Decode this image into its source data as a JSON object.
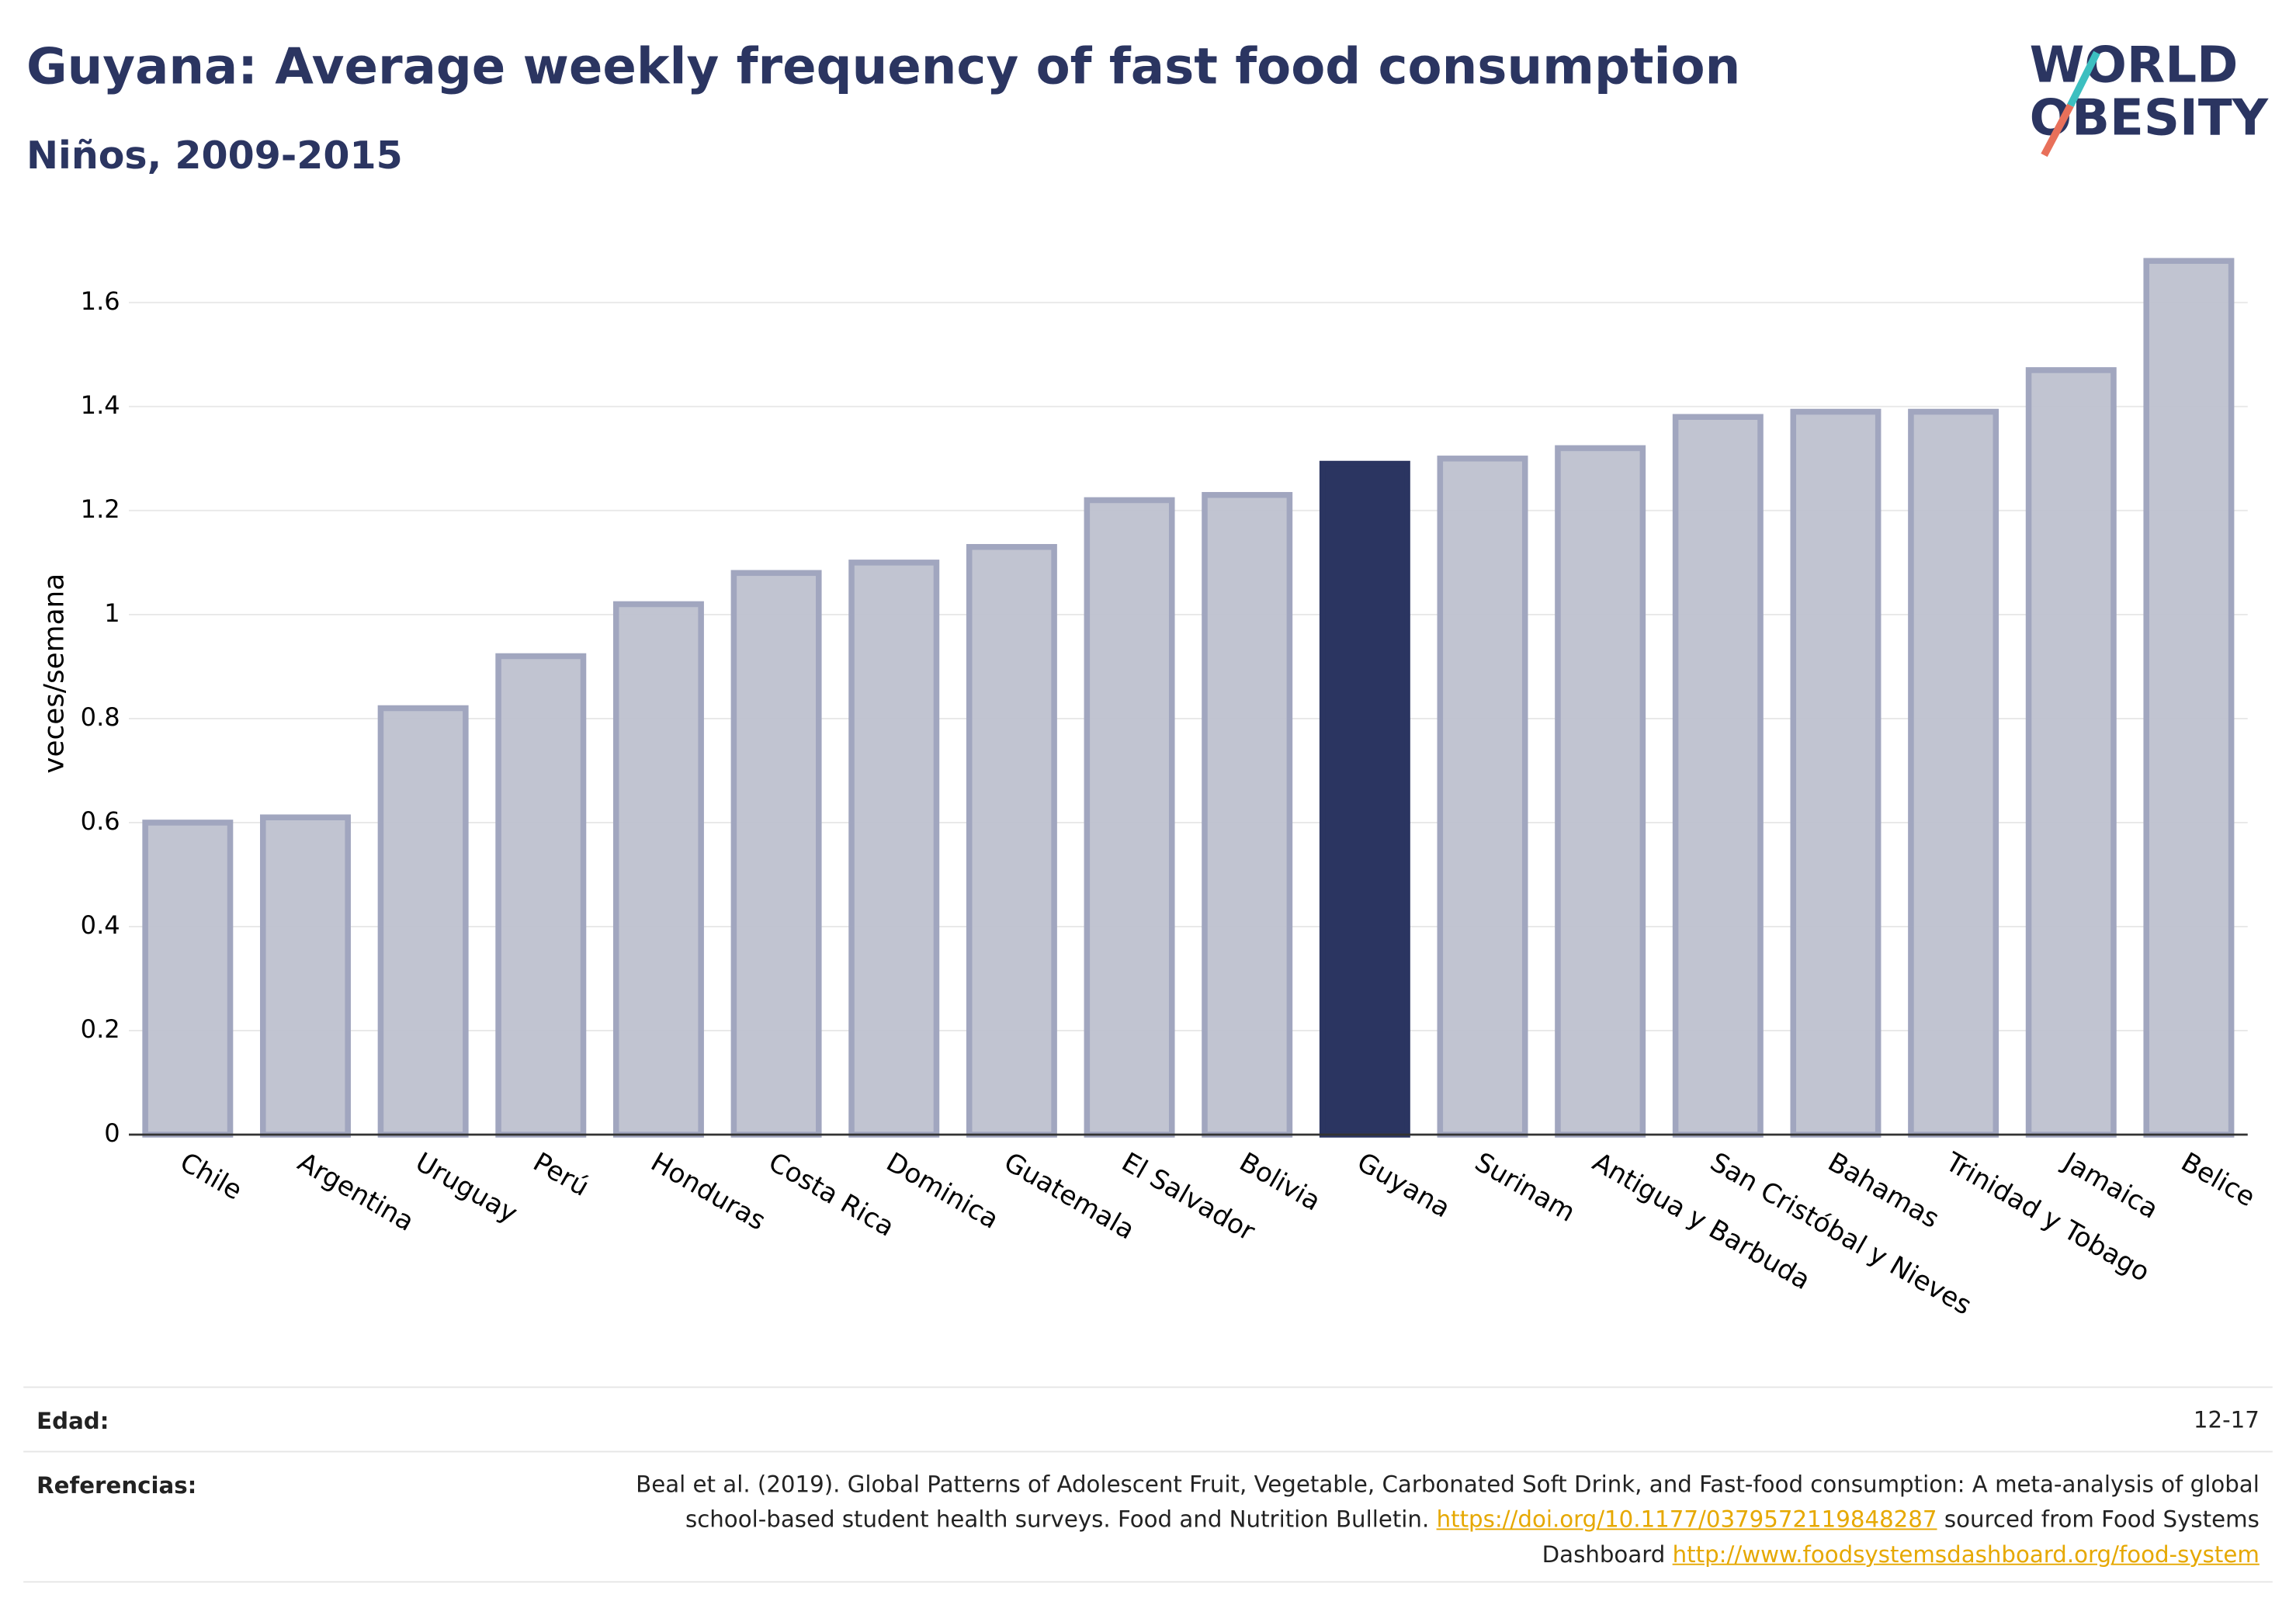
{
  "chart_data": {
    "type": "bar",
    "title": "Guyana: Average weekly frequency of fast food consumption",
    "subtitle": "Niños, 2009-2015",
    "y_label": "veces/semana",
    "categories": [
      "Chile",
      "Argentina",
      "Uruguay",
      "Perú",
      "Honduras",
      "Costa Rica",
      "Dominica",
      "Guatemala",
      "El Salvador",
      "Bolivia",
      "Guyana",
      "Surinam",
      "Antigua y Barbuda",
      "San Cristóbal y Nieves",
      "Bahamas",
      "Trinidad y Tobago",
      "Jamaica",
      "Belice"
    ],
    "values": [
      0.6,
      0.61,
      0.82,
      0.92,
      1.02,
      1.08,
      1.1,
      1.13,
      1.22,
      1.23,
      1.29,
      1.3,
      1.32,
      1.38,
      1.39,
      1.39,
      1.47,
      1.68
    ],
    "colors": [
      "#bec1cf",
      "#bec1cf",
      "#bec1cf",
      "#bec1cf",
      "#bec1cf",
      "#bec1cf",
      "#bec1cf",
      "#bec1cf",
      "#bec1cf",
      "#bec1cf",
      "#2b3561",
      "#bec1cf",
      "#bec1cf",
      "#bec1cf",
      "#bec1cf",
      "#bec1cf",
      "#bec1cf",
      "#bec1cf"
    ],
    "ylim": [
      0,
      1.72
    ],
    "yticks": [
      0,
      0.2,
      0.4,
      0.6,
      0.8,
      1,
      1.2,
      1.4,
      1.6
    ],
    "grid": true
  },
  "logo": [
    "WORLD",
    "OBESITY"
  ],
  "footer": [
    {
      "label": "Edad:",
      "value": "12-17"
    },
    {
      "label": "Referencias:",
      "parts": [
        "Beal et al. (2019). Global Patterns of Adolescent Fruit, Vegetable, Carbonated Soft Drink, and Fast-food consumption: A meta-analysis of global school-based student health surveys. Food and Nutrition Bulletin.",
        "https://doi.org/10.1177/0379572119848287",
        "sourced from Food Systems Dashboard",
        "http://www.foodsystemsdashboard.org/food-system"
      ]
    }
  ]
}
